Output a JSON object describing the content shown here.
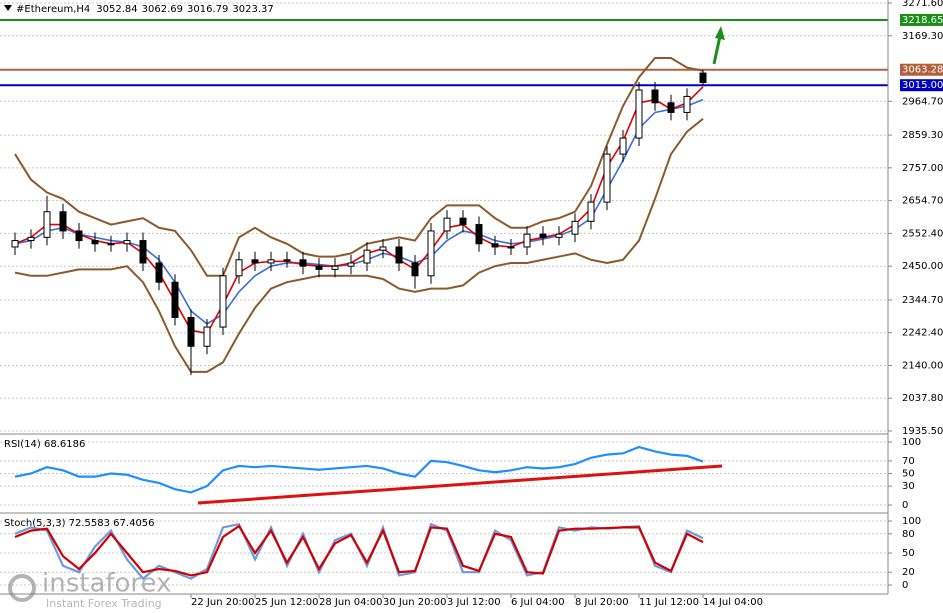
{
  "chart_data": [
    {
      "type": "candlestick",
      "title": "#Ethereum,H4",
      "categories": [
        null,
        null,
        null,
        null,
        null,
        null,
        null,
        null,
        null,
        null,
        null,
        "22 Jun 20:00",
        null,
        null,
        null,
        "25 Jun 12:00",
        null,
        null,
        null,
        "28 Jun 04:00",
        null,
        null,
        null,
        "30 Jun 20:00",
        null,
        null,
        null,
        "3 Jul 12:00",
        null,
        null,
        null,
        "6 Jul 04:00",
        null,
        null,
        null,
        "8 Jul 20:00",
        null,
        null,
        null,
        "11 Jul 12:00",
        null,
        null,
        null,
        "14 Jul 04:00"
      ],
      "open": [
        2510,
        2530,
        2540,
        2620,
        2560,
        2530,
        2520,
        2520,
        2530,
        2460,
        2400,
        2290,
        2200,
        2260,
        2420,
        2470,
        2460,
        2470,
        2470,
        2450,
        2440,
        2450,
        2460,
        2500,
        2510,
        2460,
        2420,
        2560,
        2600,
        2580,
        2520,
        2510,
        2510,
        2550,
        2540,
        2550,
        2590,
        2650,
        2800,
        2850,
        3000,
        2960,
        2930,
        3052.84
      ],
      "high": [
        2555,
        2565,
        2670,
        2645,
        2585,
        2555,
        2545,
        2555,
        2555,
        2485,
        2425,
        2315,
        2285,
        2445,
        2495,
        2495,
        2495,
        2495,
        2495,
        2475,
        2475,
        2485,
        2525,
        2535,
        2535,
        2485,
        2585,
        2625,
        2625,
        2605,
        2545,
        2535,
        2575,
        2575,
        2575,
        2615,
        2675,
        2825,
        2875,
        3025,
        3025,
        2985,
        3005,
        3062.69
      ],
      "low": [
        2485,
        2505,
        2515,
        2535,
        2505,
        2495,
        2495,
        2495,
        2435,
        2375,
        2265,
        2110,
        2175,
        2235,
        2395,
        2435,
        2435,
        2445,
        2425,
        2415,
        2415,
        2425,
        2435,
        2475,
        2435,
        2380,
        2395,
        2535,
        2555,
        2495,
        2485,
        2485,
        2485,
        2515,
        2515,
        2525,
        2565,
        2625,
        2775,
        2825,
        2935,
        2905,
        2905,
        3016.79
      ],
      "close": [
        2530,
        2540,
        2620,
        2560,
        2530,
        2520,
        2520,
        2530,
        2460,
        2400,
        2290,
        2200,
        2260,
        2420,
        2470,
        2460,
        2470,
        2470,
        2450,
        2440,
        2450,
        2460,
        2500,
        2510,
        2460,
        2420,
        2560,
        2600,
        2580,
        2520,
        2510,
        2510,
        2550,
        2540,
        2550,
        2590,
        2650,
        2800,
        2850,
        3000,
        2960,
        2930,
        2980,
        3023.37
      ],
      "series": [
        {
          "color": "#8b5a2b",
          "values": [
            2800,
            2720,
            2680,
            2660,
            2620,
            2600,
            2580,
            2590,
            2600,
            2570,
            2560,
            2500,
            2420,
            2420,
            2540,
            2570,
            2540,
            2520,
            2490,
            2480,
            2480,
            2490,
            2520,
            2530,
            2540,
            2530,
            2600,
            2640,
            2640,
            2640,
            2600,
            2570,
            2570,
            2590,
            2600,
            2620,
            2700,
            2830,
            2950,
            3040,
            3100,
            3100,
            3070,
            3060
          ]
        },
        {
          "color": "#8b5a2b",
          "values": [
            2430,
            2420,
            2420,
            2430,
            2440,
            2440,
            2440,
            2450,
            2400,
            2310,
            2200,
            2120,
            2120,
            2150,
            2240,
            2320,
            2380,
            2400,
            2410,
            2420,
            2420,
            2420,
            2420,
            2410,
            2380,
            2370,
            2380,
            2380,
            2390,
            2430,
            2450,
            2460,
            2460,
            2470,
            2480,
            2490,
            2470,
            2460,
            2470,
            2530,
            2660,
            2800,
            2870,
            2910
          ]
        },
        {
          "color": "#3a6fd8",
          "values": [
            2520,
            2530,
            2560,
            2570,
            2550,
            2540,
            2530,
            2525,
            2510,
            2470,
            2400,
            2310,
            2270,
            2300,
            2370,
            2420,
            2450,
            2460,
            2460,
            2455,
            2450,
            2455,
            2470,
            2490,
            2480,
            2460,
            2480,
            2530,
            2560,
            2550,
            2530,
            2520,
            2525,
            2535,
            2545,
            2565,
            2600,
            2690,
            2780,
            2880,
            2930,
            2940,
            2950,
            2970
          ]
        },
        {
          "color": "#e00000",
          "values": [
            2520,
            2540,
            2580,
            2580,
            2550,
            2530,
            2520,
            2525,
            2490,
            2430,
            2340,
            2250,
            2240,
            2330,
            2430,
            2460,
            2465,
            2465,
            2455,
            2450,
            2450,
            2460,
            2490,
            2505,
            2470,
            2440,
            2500,
            2570,
            2580,
            2540,
            2515,
            2510,
            2530,
            2540,
            2550,
            2580,
            2630,
            2760,
            2840,
            2960,
            2970,
            2940,
            2960,
            3010
          ]
        }
      ],
      "levels": [
        {
          "value": 3218.65,
          "color": "#1a8f1a"
        },
        {
          "value": 3063.28,
          "color": "#b0603a"
        },
        {
          "value": 3015,
          "label": "3015.00",
          "color": "#0000c0"
        }
      ],
      "ylim": [
        1935.5,
        3271.6
      ],
      "yticks": [
        {
          "value": 3271.6,
          "label": "3271.60"
        },
        {
          "value": 3169.3,
          "label": "3169.30"
        },
        {
          "value": 2964.7,
          "label": "2964.70"
        },
        {
          "value": 2859.3,
          "label": "2859.30"
        },
        {
          "value": 2757,
          "label": "2757.00"
        },
        {
          "value": 2654.7,
          "label": "2654.70"
        },
        {
          "value": 2552.4,
          "label": "2552.40"
        },
        {
          "value": 2450,
          "label": "2450.00"
        },
        {
          "value": 2344.7,
          "label": "2344.70"
        },
        {
          "value": 2242.4,
          "label": "2242.40"
        },
        {
          "value": 2140,
          "label": "2140.00"
        },
        {
          "value": 2037.8,
          "label": "2037.80"
        },
        {
          "value": 1935.5,
          "label": "1935.50"
        }
      ],
      "grid": true
    },
    {
      "type": "line",
      "title": "RSI(14) 68.6186",
      "series": [
        {
          "color": "#1e8fff",
          "values": [
            45,
            50,
            60,
            55,
            45,
            45,
            50,
            48,
            40,
            35,
            25,
            20,
            30,
            55,
            62,
            60,
            62,
            60,
            58,
            56,
            58,
            60,
            62,
            58,
            50,
            45,
            70,
            68,
            62,
            55,
            52,
            55,
            60,
            58,
            60,
            65,
            75,
            80,
            82,
            92,
            85,
            80,
            78,
            69
          ]
        }
      ],
      "ylim": [
        0,
        100
      ],
      "yticks": [
        100,
        70,
        50,
        30,
        0
      ],
      "grid": true
    },
    {
      "type": "line",
      "title": "Stoch(5,3,3) 72.5583 67.4056",
      "series": [
        {
          "color": "#6a9be0",
          "values": [
            80,
            90,
            85,
            30,
            20,
            60,
            85,
            40,
            10,
            30,
            20,
            10,
            25,
            90,
            95,
            40,
            90,
            30,
            80,
            20,
            70,
            80,
            30,
            90,
            15,
            20,
            95,
            85,
            20,
            20,
            85,
            70,
            15,
            20,
            90,
            85,
            90,
            88,
            90,
            92,
            30,
            20,
            85,
            73
          ]
        },
        {
          "color": "#d00000",
          "values": [
            75,
            85,
            88,
            45,
            25,
            50,
            80,
            50,
            20,
            25,
            22,
            15,
            20,
            75,
            92,
            50,
            85,
            35,
            75,
            25,
            65,
            78,
            35,
            85,
            20,
            22,
            90,
            88,
            30,
            22,
            80,
            75,
            20,
            18,
            85,
            88,
            88,
            89,
            90,
            90,
            35,
            22,
            80,
            67
          ]
        }
      ],
      "ylim": [
        0,
        100
      ],
      "yticks": [
        100,
        80,
        50,
        20,
        0
      ],
      "grid": true
    }
  ],
  "watermark": {
    "brand": "instaforex",
    "tagline": "Instant Forex Trading"
  }
}
